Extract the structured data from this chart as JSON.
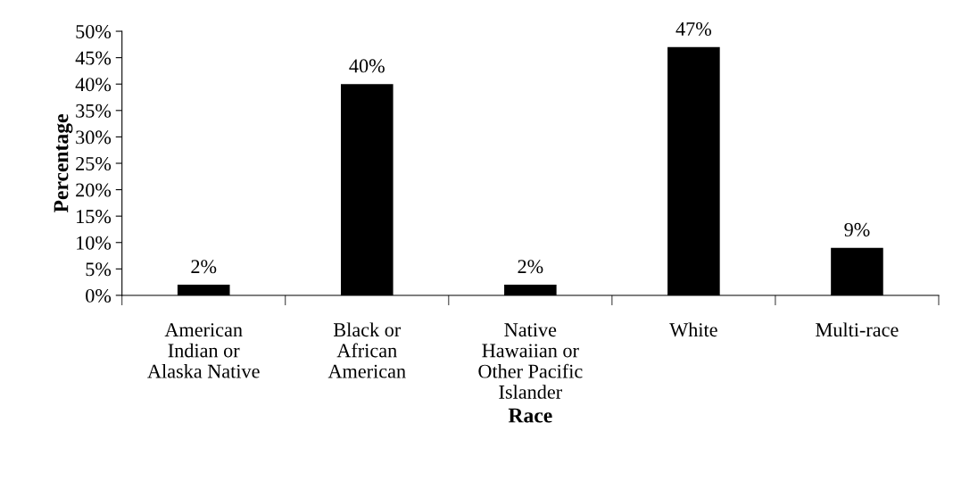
{
  "chart_data": {
    "type": "bar",
    "xlabel": "Race",
    "ylabel": "Percentage",
    "categories": [
      "American\nIndian or\nAlaska Native",
      "Black or\nAfrican\nAmerican",
      "Native\nHawaiian or\nOther Pacific\nIslander",
      "White",
      "Multi-race"
    ],
    "values": [
      2,
      40,
      2,
      47,
      9
    ],
    "value_labels": [
      "2%",
      "40%",
      "2%",
      "47%",
      "9%"
    ],
    "color": "#000000",
    "ylim": [
      0,
      50
    ],
    "yticks": [
      {
        "value": 0,
        "label": "0%"
      },
      {
        "value": 5,
        "label": "5%"
      },
      {
        "value": 10,
        "label": "10%"
      },
      {
        "value": 15,
        "label": "15%"
      },
      {
        "value": 20,
        "label": "20%"
      },
      {
        "value": 25,
        "label": "25%"
      },
      {
        "value": 30,
        "label": "30%"
      },
      {
        "value": 35,
        "label": "35%"
      },
      {
        "value": 40,
        "label": "40%"
      },
      {
        "value": 45,
        "label": "45%"
      },
      {
        "value": 50,
        "label": "50%"
      }
    ],
    "grid": false,
    "legend": false
  }
}
